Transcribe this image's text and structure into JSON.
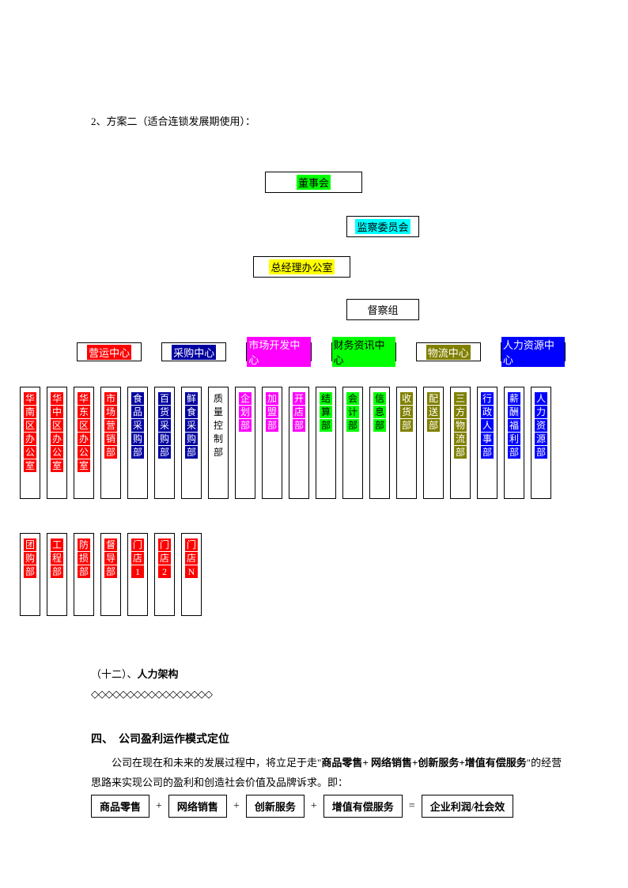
{
  "heading1": "2、方案二（适合连锁发展期使用）：",
  "top_boxes": [
    {
      "label": "董事会",
      "bg": "#00ff00"
    },
    {
      "label": "监察委员会",
      "bg": "#00ffff"
    },
    {
      "label": "总经理办公室",
      "bg": "#ffff00"
    },
    {
      "label": "督察组",
      "bg": "#ffffff"
    }
  ],
  "centers": [
    {
      "label": "营运中心",
      "bg": "#ff0000",
      "color": "#ffffff"
    },
    {
      "label": "采购中心",
      "bg": "#0000a0",
      "color": "#ffffff"
    },
    {
      "label": "市场开发中心",
      "bg": "#ff00ff",
      "color": "#ffffff"
    },
    {
      "label": "财务资讯中心",
      "bg": "#00ff00",
      "color": "#000000"
    },
    {
      "label": "物流中心",
      "bg": "#808000",
      "color": "#ffffff"
    },
    {
      "label": "人力资源中心",
      "bg": "#0000ff",
      "color": "#ffffff"
    }
  ],
  "depts": [
    {
      "chars": [
        "华",
        "南",
        "区",
        "办",
        "公",
        "室"
      ],
      "bg": "#ff0000",
      "color": "#ffffff"
    },
    {
      "chars": [
        "华",
        "中",
        "区",
        "办",
        "公",
        "室"
      ],
      "bg": "#ff0000",
      "color": "#ffffff"
    },
    {
      "chars": [
        "华",
        "东",
        "区",
        "办",
        "公",
        "室"
      ],
      "bg": "#ff0000",
      "color": "#ffffff"
    },
    {
      "chars": [
        "市",
        "场",
        "营",
        "销",
        "部"
      ],
      "bg": "#ff0000",
      "color": "#ffffff"
    },
    {
      "chars": [
        "食",
        "品",
        "采",
        "购",
        "部"
      ],
      "bg": "#0000a0",
      "color": "#ffffff"
    },
    {
      "chars": [
        "百",
        "货",
        "采",
        "购",
        "部"
      ],
      "bg": "#0000a0",
      "color": "#ffffff"
    },
    {
      "chars": [
        "鲜",
        "食",
        "采",
        "购",
        "部"
      ],
      "bg": "#0000a0",
      "color": "#ffffff"
    },
    {
      "chars": [
        "质",
        "量",
        "控",
        "制",
        "部"
      ],
      "bg": "#ffffff",
      "color": "#000000"
    },
    {
      "chars": [
        "企",
        "划",
        "部"
      ],
      "bg": "#ff00ff",
      "color": "#ffffff"
    },
    {
      "chars": [
        "加",
        "盟",
        "部"
      ],
      "bg": "#ff00ff",
      "color": "#ffffff"
    },
    {
      "chars": [
        "开",
        "店",
        "部"
      ],
      "bg": "#ff00ff",
      "color": "#ffffff"
    },
    {
      "chars": [
        "结",
        "算",
        "部"
      ],
      "bg": "#00ff00",
      "color": "#000000"
    },
    {
      "chars": [
        "会",
        "计",
        "部"
      ],
      "bg": "#00ff00",
      "color": "#000000"
    },
    {
      "chars": [
        "信",
        "息",
        "部"
      ],
      "bg": "#00ff00",
      "color": "#000000"
    },
    {
      "chars": [
        "收",
        "货",
        "部"
      ],
      "bg": "#808000",
      "color": "#ffffff"
    },
    {
      "chars": [
        "配",
        "送",
        "部"
      ],
      "bg": "#808000",
      "color": "#ffffff"
    },
    {
      "chars": [
        "三",
        "方",
        "物",
        "流",
        "部"
      ],
      "bg": "#808000",
      "color": "#ffffff"
    },
    {
      "chars": [
        "行",
        "政",
        "人",
        "事",
        "部"
      ],
      "bg": "#0000ff",
      "color": "#ffffff"
    },
    {
      "chars": [
        "薪",
        "酬",
        "福",
        "利",
        "部"
      ],
      "bg": "#0000ff",
      "color": "#ffffff"
    },
    {
      "chars": [
        "人",
        "力",
        "资",
        "源",
        "部"
      ],
      "bg": "#0000ff",
      "color": "#ffffff"
    }
  ],
  "bottom_depts": [
    {
      "chars": [
        "团",
        "购",
        "部"
      ],
      "bg": "#ff0000",
      "color": "#ffffff"
    },
    {
      "chars": [
        "工",
        "程",
        "部"
      ],
      "bg": "#ff0000",
      "color": "#ffffff"
    },
    {
      "chars": [
        "防",
        "损",
        "部"
      ],
      "bg": "#ff0000",
      "color": "#ffffff"
    },
    {
      "chars": [
        "督",
        "导",
        "部"
      ],
      "bg": "#ff0000",
      "color": "#ffffff"
    },
    {
      "chars": [
        "门",
        "店",
        "1"
      ],
      "bg": "#ff0000",
      "color": "#ffffff"
    },
    {
      "chars": [
        "门",
        "店",
        "2"
      ],
      "bg": "#ff0000",
      "color": "#ffffff"
    },
    {
      "chars": [
        "门",
        "店",
        "N"
      ],
      "bg": "#ff0000",
      "color": "#ffffff"
    }
  ],
  "section12_prefix": "（十二）、",
  "section12_bold": "人力架构",
  "dots": "◇◇◇◇◇◇◇◇◇◇◇◇◇◇◇◇◇",
  "section4": "四、　公司盈利运作模式定位",
  "para1_pre": "　　公司在现在和未来的发展过程中，将立足于走\"",
  "para1_bold": "商品零售+ 网络销售+创新服务+增值有偿服务",
  "para1_post": "\"的经营思路来实现公司的盈利和创造社会价值及品牌诉求。即：",
  "formula": {
    "items": [
      "商品零售",
      "网络销售",
      "创新服务",
      "增值有偿服务"
    ],
    "result": "企业利润/社会效",
    "plus": "+",
    "eq": "="
  }
}
